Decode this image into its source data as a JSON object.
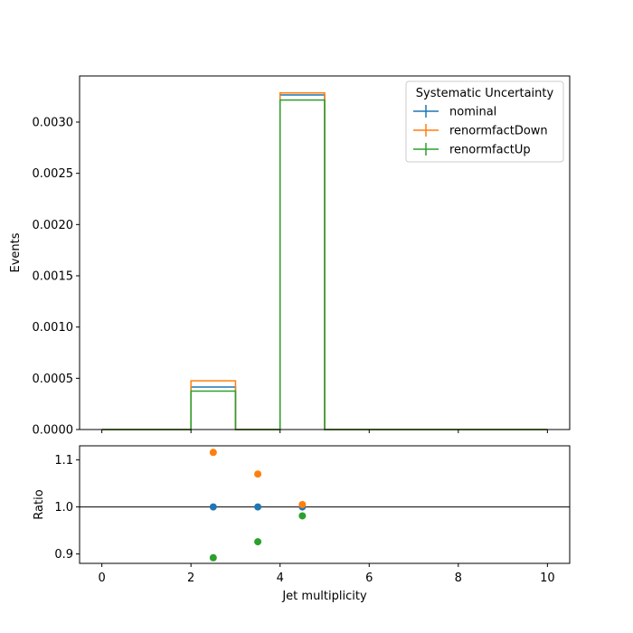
{
  "chart_data": [
    {
      "type": "line",
      "subtype": "step-histogram",
      "bin_edges": [
        0,
        1,
        2,
        3,
        4,
        5,
        6,
        7,
        8,
        9,
        10
      ],
      "ylabel": "Events",
      "xlim": [
        -0.5,
        10.5
      ],
      "ylim": [
        0,
        0.00345
      ],
      "yticks": [
        0.0,
        0.0005,
        0.001,
        0.0015,
        0.002,
        0.0025,
        0.003
      ],
      "ytick_labels": [
        "0.0000",
        "0.0005",
        "0.0010",
        "0.0015",
        "0.0020",
        "0.0025",
        "0.0030"
      ],
      "xticks": [
        0,
        2,
        4,
        6,
        8,
        10
      ],
      "legend": {
        "title": "Systematic Uncertainty",
        "placement": "top-right"
      },
      "series": [
        {
          "name": "nominal",
          "color": "#1f77b4",
          "values": [
            0,
            0,
            0.000415,
            0,
            0.003265,
            0,
            0,
            0,
            0,
            0
          ]
        },
        {
          "name": "renormfactDown",
          "color": "#ff7f0e",
          "values": [
            0,
            0,
            0.000475,
            0,
            0.003285,
            0,
            0,
            0,
            0,
            0
          ]
        },
        {
          "name": "renormfactUp",
          "color": "#2ca02c",
          "values": [
            0,
            0,
            0.000375,
            0,
            0.003215,
            0,
            0,
            0,
            0,
            0
          ]
        }
      ]
    },
    {
      "type": "scatter",
      "xlabel": "Jet multiplicity",
      "ylabel": "Ratio",
      "xlim": [
        -0.5,
        10.5
      ],
      "ylim": [
        0.88,
        1.13
      ],
      "xticks": [
        0,
        2,
        4,
        6,
        8,
        10
      ],
      "yticks": [
        0.9,
        1.0,
        1.1
      ],
      "ytick_labels": [
        "0.9",
        "1.0",
        "1.1"
      ],
      "reference_line": 1.0,
      "series": [
        {
          "name": "nominal",
          "color": "#1f77b4",
          "x": [
            2.5,
            3.5,
            4.5
          ],
          "y": [
            1.0,
            1.0,
            1.0
          ]
        },
        {
          "name": "renormfactDown",
          "color": "#ff7f0e",
          "x": [
            2.5,
            3.5,
            4.5
          ],
          "y": [
            1.116,
            1.07,
            1.005
          ]
        },
        {
          "name": "renormfactUp",
          "color": "#2ca02c",
          "x": [
            2.5,
            3.5,
            4.5
          ],
          "y": [
            0.892,
            0.926,
            0.981
          ]
        }
      ]
    }
  ]
}
